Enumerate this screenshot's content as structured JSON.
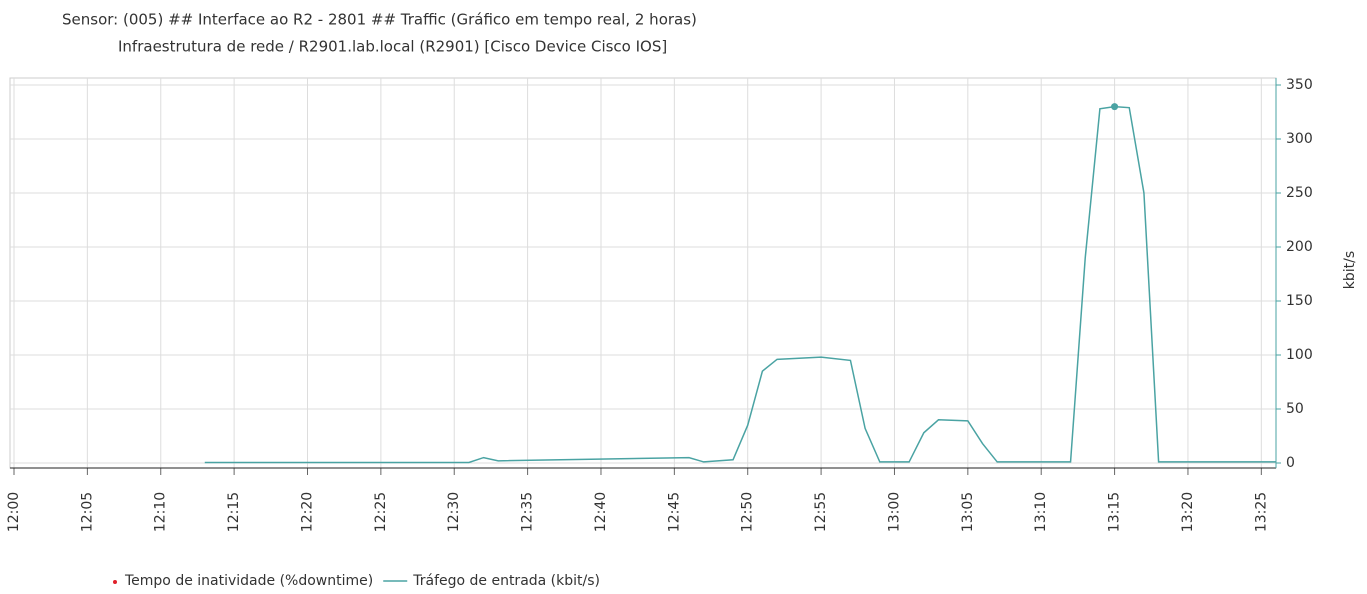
{
  "chart_data": {
    "type": "line",
    "title": "Sensor: (005) ## Interface ao R2 - 2801 ## Traffic (Gráfico em tempo real, 2 horas)",
    "subtitle": "Infraestrutura de rede / R2901.lab.local (R2901) [Cisco Device Cisco IOS]",
    "y_label": "kbit/s",
    "x": [
      "12:13",
      "12:31",
      "12:32",
      "12:33",
      "12:46",
      "12:47",
      "12:49",
      "12:50",
      "12:51",
      "12:52",
      "12:55",
      "12:57",
      "12:58",
      "12:59",
      "13:01",
      "13:02",
      "13:03",
      "13:05",
      "13:06",
      "13:07",
      "13:12",
      "13:13",
      "13:14",
      "13:15",
      "13:16",
      "13:17",
      "13:18",
      "13:26"
    ],
    "series": [
      {
        "name": "Tempo de inatividade (%downtime)",
        "color": "#e0202a",
        "values": [
          null,
          null,
          null,
          null,
          null,
          null,
          null,
          null,
          null,
          null,
          null,
          null,
          null,
          null,
          null,
          null,
          null,
          null,
          null,
          null,
          null,
          null,
          null,
          null,
          null,
          null,
          null,
          null
        ]
      },
      {
        "name": "Tráfego de entrada (kbit/s)",
        "color": "#4aa3a3",
        "values": [
          0.5,
          0.5,
          5,
          2,
          5,
          1,
          3,
          35,
          85,
          96,
          98,
          95,
          32,
          1,
          1,
          28,
          40,
          39,
          18,
          1,
          1,
          190,
          328,
          330,
          329,
          250,
          1,
          1
        ]
      }
    ],
    "xlim": [
      "12:00",
      "13:26"
    ],
    "xticks": [
      "12:00",
      "12:05",
      "12:10",
      "12:15",
      "12:20",
      "12:25",
      "12:30",
      "12:35",
      "12:40",
      "12:45",
      "12:50",
      "12:55",
      "13:00",
      "13:05",
      "13:10",
      "13:15",
      "13:20",
      "13:25"
    ],
    "ylim": [
      0,
      350
    ],
    "yticks": [
      0,
      50,
      100,
      150,
      200,
      250,
      300,
      350
    ],
    "grid": true
  }
}
